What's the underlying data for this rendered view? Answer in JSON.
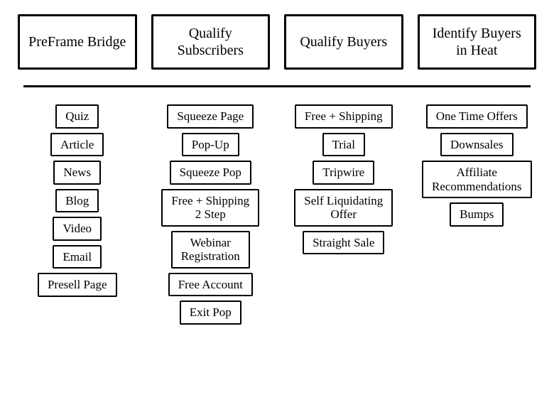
{
  "type": "infographic",
  "background_color": "#ffffff",
  "stroke_color": "#000000",
  "header_border_width": 3,
  "item_border_width": 2,
  "divider_width": 3,
  "font_family": "Comic Sans MS, cursive",
  "header_fontsize": 20,
  "item_fontsize": 17,
  "headers": [
    {
      "label": "PreFrame\nBridge"
    },
    {
      "label": "Qualify\nSubscribers"
    },
    {
      "label": "Qualify\nBuyers"
    },
    {
      "label": "Identify\nBuyers in Heat"
    }
  ],
  "columns": [
    {
      "items": [
        {
          "label": "Quiz"
        },
        {
          "label": "Article"
        },
        {
          "label": "News"
        },
        {
          "label": "Blog"
        },
        {
          "label": "Video"
        },
        {
          "label": "Email"
        },
        {
          "label": "Presell Page"
        }
      ]
    },
    {
      "items": [
        {
          "label": "Squeeze Page"
        },
        {
          "label": "Pop-Up"
        },
        {
          "label": "Squeeze Pop"
        },
        {
          "label": "Free + Shipping\n2 Step"
        },
        {
          "label": "Webinar\nRegistration"
        },
        {
          "label": "Free Account"
        },
        {
          "label": "Exit Pop"
        }
      ]
    },
    {
      "items": [
        {
          "label": "Free + Shipping"
        },
        {
          "label": "Trial"
        },
        {
          "label": "Tripwire"
        },
        {
          "label": "Self Liquidating\nOffer"
        },
        {
          "label": "Straight Sale"
        }
      ]
    },
    {
      "items": [
        {
          "label": "One Time Offers"
        },
        {
          "label": "Downsales"
        },
        {
          "label": "Affiliate\nRecommendations"
        },
        {
          "label": "Bumps"
        }
      ]
    }
  ]
}
